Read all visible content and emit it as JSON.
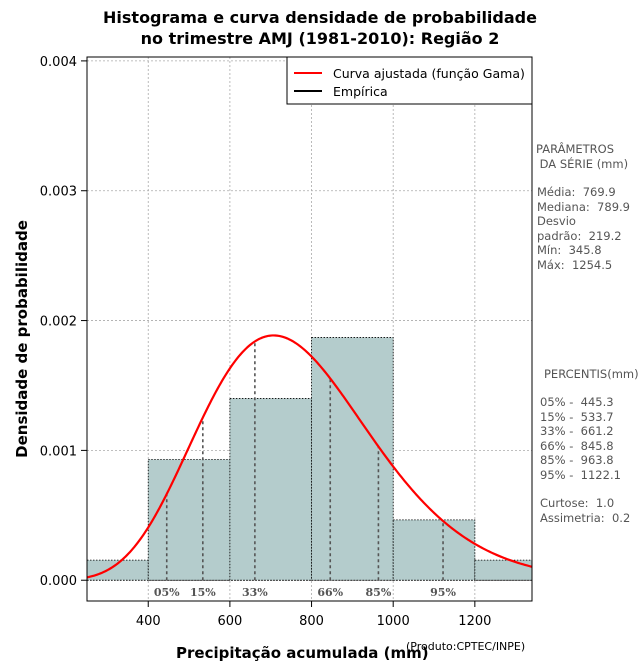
{
  "chart_data": {
    "type": "histogram",
    "title_line1": "Histograma e curva densidade de probabilidade",
    "title_line2": "no trimestre AMJ (1981-2010): Região 2",
    "xlabel": "Precipitação acumulada (mm)",
    "ylabel": "Densidade de probabilidade",
    "credit": "(Produto:CPTEC/INPE)",
    "xlim": [
      250,
      1340
    ],
    "ylim": [
      -0.00016,
      0.00403
    ],
    "x_ticks": [
      400,
      600,
      800,
      1000,
      1200
    ],
    "x_tick_labels": [
      "400",
      "600",
      "800",
      "1000",
      "1200"
    ],
    "y_ticks": [
      0,
      0.001,
      0.002,
      0.003,
      0.004
    ],
    "y_tick_labels": [
      "0.000",
      "0.001",
      "0.002",
      "0.003",
      "0.004"
    ],
    "bins": [
      {
        "from": 250,
        "to": 400,
        "density": 0.000155
      },
      {
        "from": 400,
        "to": 600,
        "density": 0.00093
      },
      {
        "from": 600,
        "to": 800,
        "density": 0.0014
      },
      {
        "from": 800,
        "to": 1000,
        "density": 0.00187
      },
      {
        "from": 1000,
        "to": 1200,
        "density": 0.000465
      },
      {
        "from": 1200,
        "to": 1340,
        "density": 0.000155
      }
    ],
    "gamma_fit": {
      "shape": 12.33,
      "scale": 62.4
    },
    "legend": {
      "position": "top-right",
      "entries": [
        {
          "label": "Curva ajustada (função Gama)",
          "color": "#ff0000"
        },
        {
          "label": "Empírica",
          "color": "#000000"
        }
      ]
    },
    "percentile_markers": [
      {
        "label": "05%",
        "value": 445.3
      },
      {
        "label": "15%",
        "value": 533.7
      },
      {
        "label": "33%",
        "value": 661.2
      },
      {
        "label": "66%",
        "value": 845.8
      },
      {
        "label": "85%",
        "value": 963.8
      },
      {
        "label": "95%",
        "value": 1122.1
      }
    ],
    "colors": {
      "bar_fill": "#b4cccc",
      "curve": "#ff0000",
      "grid": "#aaaaaa",
      "marker": "#555555"
    }
  },
  "side_panel": {
    "params_heading_1": "PARÂMETROS",
    "params_heading_2": " DA SÉRIE (mm)",
    "stats": [
      "Média:  769.9",
      "Mediana:  789.9",
      "Desvio",
      "padrão:  219.2",
      "Mín:  345.8",
      "Máx:  1254.5"
    ],
    "percentis_heading": "PERCENTIS(mm)",
    "percentis": [
      "05% -  445.3",
      "15% -  533.7",
      "33% -  661.2",
      "66% -  845.8",
      "85% -  963.8",
      "95% -  1122.1"
    ],
    "shape_stats": [
      "Curtose:  1.0",
      "Assimetria:  0.2"
    ]
  }
}
